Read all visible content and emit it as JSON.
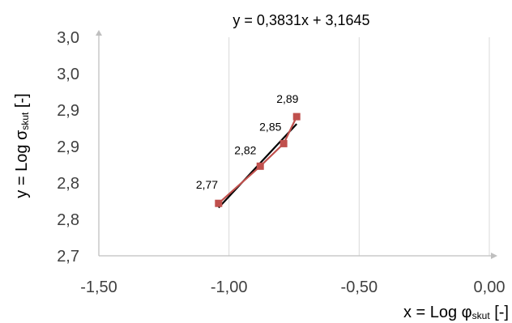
{
  "chart_data": {
    "type": "scatter",
    "title": "",
    "trendline_equation": "y = 0,3831x + 3,1645",
    "xlabel": {
      "main": "x = Log φ",
      "sub": "skut",
      "unit": " [-]"
    },
    "ylabel": {
      "main": "y = Log σ",
      "sub": "skut",
      "unit": " [-]"
    },
    "xlim": [
      -1.5,
      0.0
    ],
    "ylim": [
      2.7,
      3.0
    ],
    "x_ticks": [
      -1.5,
      -1.0,
      -0.5,
      0.0
    ],
    "x_tick_labels": [
      "-1,50",
      "-1,00",
      "-0,50",
      "0,00"
    ],
    "y_ticks": [
      2.7,
      2.75,
      2.8,
      2.85,
      2.9,
      2.95,
      3.0
    ],
    "y_tick_labels": [
      "2,7",
      "2,8",
      "2,8",
      "2,9",
      "2,9",
      "3,0",
      "3,0"
    ],
    "grid": "vertical",
    "series": [
      {
        "color": "#c0504d",
        "marker": "square",
        "x": [
          -1.04,
          -0.88,
          -0.79,
          -0.74
        ],
        "y": [
          2.772,
          2.823,
          2.854,
          2.891
        ],
        "labels": [
          "2,77",
          "2,82",
          "2,85",
          "2,89"
        ]
      }
    ],
    "trendline": {
      "slope": 0.3831,
      "intercept": 3.1645,
      "x_range": [
        -1.04,
        -0.74
      ],
      "color": "#000000"
    }
  }
}
